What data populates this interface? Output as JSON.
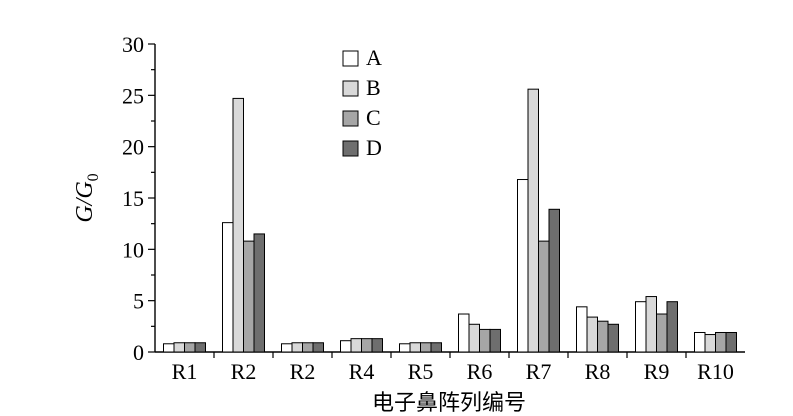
{
  "chart_data": {
    "type": "bar",
    "categories": [
      "R1",
      "R2",
      "R2",
      "R4",
      "R5",
      "R6",
      "R7",
      "R8",
      "R9",
      "R10"
    ],
    "series": [
      {
        "name": "A",
        "color": "#ffffff",
        "values": [
          0.8,
          12.6,
          0.8,
          1.1,
          0.8,
          3.7,
          16.8,
          4.4,
          4.9,
          1.9
        ]
      },
      {
        "name": "B",
        "color": "#d9d9d9",
        "values": [
          0.9,
          24.7,
          0.9,
          1.3,
          0.9,
          2.7,
          25.6,
          3.4,
          5.4,
          1.7
        ]
      },
      {
        "name": "C",
        "color": "#a6a6a6",
        "values": [
          0.9,
          10.8,
          0.9,
          1.3,
          0.9,
          2.2,
          10.8,
          3.0,
          3.7,
          1.9
        ]
      },
      {
        "name": "D",
        "color": "#6e6e6e",
        "values": [
          0.9,
          11.5,
          0.9,
          1.3,
          0.9,
          2.2,
          13.9,
          2.7,
          4.9,
          1.9
        ]
      }
    ],
    "title": "",
    "ylabel_main": "G/G",
    "ylabel_sub": "0",
    "xlabel": "电子鼻阵列编号",
    "ylim": [
      0,
      30
    ],
    "yticks": [
      0,
      5,
      10,
      15,
      20,
      25,
      30
    ],
    "grid": false,
    "legend_position": "top-center"
  }
}
